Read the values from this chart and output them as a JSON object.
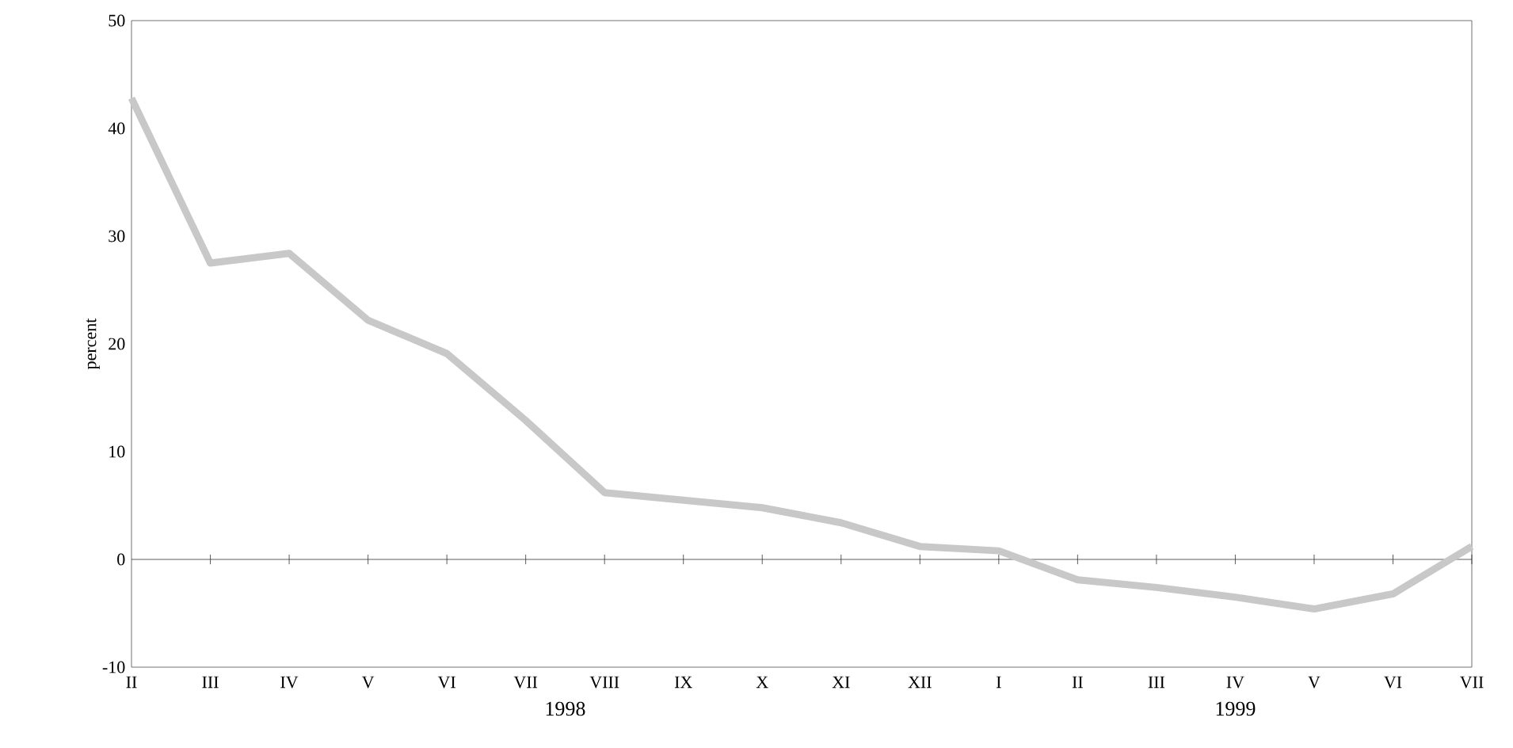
{
  "chart_data": {
    "type": "line",
    "ylabel": "percent",
    "categories": [
      "II",
      "III",
      "IV",
      "V",
      "VI",
      "VII",
      "VIII",
      "IX",
      "X",
      "XI",
      "XII",
      "I",
      "II",
      "III",
      "IV",
      "V",
      "VI",
      "VII"
    ],
    "series": [
      {
        "color": "#c8c8c8",
        "values": [
          42.8,
          27.5,
          28.4,
          22.2,
          19.1,
          12.9,
          6.2,
          5.5,
          4.8,
          3.4,
          1.2,
          0.8,
          -1.9,
          -2.6,
          -3.5,
          -4.6,
          -3.2,
          1.2
        ]
      }
    ],
    "ylim": [
      -10,
      50
    ],
    "yticks": [
      -10,
      0,
      10,
      20,
      30,
      40,
      50
    ],
    "grid": false,
    "ref_lines": [
      {
        "axis": "y",
        "value": 0
      }
    ],
    "marker": "none",
    "line_style": "solid",
    "annotations": [
      "1998",
      "1999"
    ]
  }
}
